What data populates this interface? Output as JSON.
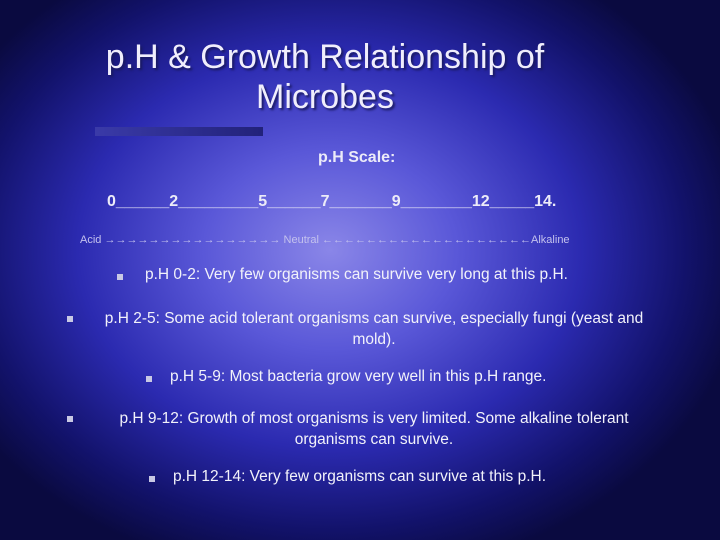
{
  "title": {
    "line1": "p.H & Growth Relationship of",
    "line2": "Microbes"
  },
  "scale_heading": "p.H Scale:",
  "scale_line": "0______2_________5______7_______9________12_____14.",
  "arrow_line": "Acid →→→→→→→→→→→→→→→→ Neutral ←←←←←←←←←←←←←←←←←←←Alkaline",
  "bullets": [
    "p.H 0-2: Very few organisms can survive very long at this p.H.",
    "p.H 2-5: Some acid tolerant organisms can survive, especially fungi (yeast and mold).",
    "p.H 5-9: Most bacteria grow very well in this p.H range.",
    "p.H 9-12: Growth of most organisms is very limited. Some alkaline tolerant organisms can survive.",
    "p.H 12-14: Very few organisms can survive at this p.H."
  ]
}
